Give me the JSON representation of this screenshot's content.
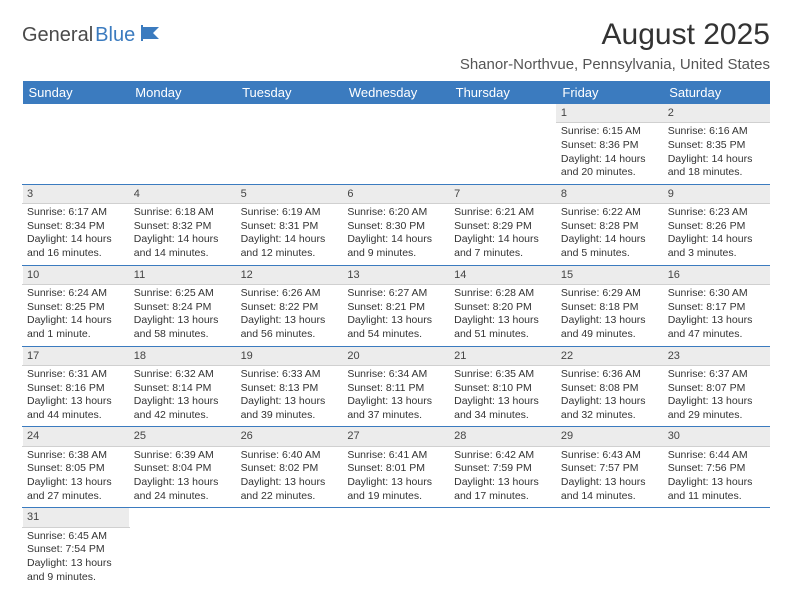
{
  "brand": {
    "part1": "General",
    "part2": "Blue"
  },
  "colors": {
    "header_bg": "#3b7bbf",
    "header_text": "#ffffff",
    "daynum_bg": "#ececec",
    "row_divider": "#3b7bbf",
    "brand_blue": "#3b7bbf",
    "brand_gray": "#4a4a4a"
  },
  "title": "August 2025",
  "location": "Shanor-Northvue, Pennsylvania, United States",
  "weekdays": [
    "Sunday",
    "Monday",
    "Tuesday",
    "Wednesday",
    "Thursday",
    "Friday",
    "Saturday"
  ],
  "weeks": [
    [
      null,
      null,
      null,
      null,
      null,
      {
        "n": "1",
        "sr": "Sunrise: 6:15 AM",
        "ss": "Sunset: 8:36 PM",
        "dl": "Daylight: 14 hours and 20 minutes."
      },
      {
        "n": "2",
        "sr": "Sunrise: 6:16 AM",
        "ss": "Sunset: 8:35 PM",
        "dl": "Daylight: 14 hours and 18 minutes."
      }
    ],
    [
      {
        "n": "3",
        "sr": "Sunrise: 6:17 AM",
        "ss": "Sunset: 8:34 PM",
        "dl": "Daylight: 14 hours and 16 minutes."
      },
      {
        "n": "4",
        "sr": "Sunrise: 6:18 AM",
        "ss": "Sunset: 8:32 PM",
        "dl": "Daylight: 14 hours and 14 minutes."
      },
      {
        "n": "5",
        "sr": "Sunrise: 6:19 AM",
        "ss": "Sunset: 8:31 PM",
        "dl": "Daylight: 14 hours and 12 minutes."
      },
      {
        "n": "6",
        "sr": "Sunrise: 6:20 AM",
        "ss": "Sunset: 8:30 PM",
        "dl": "Daylight: 14 hours and 9 minutes."
      },
      {
        "n": "7",
        "sr": "Sunrise: 6:21 AM",
        "ss": "Sunset: 8:29 PM",
        "dl": "Daylight: 14 hours and 7 minutes."
      },
      {
        "n": "8",
        "sr": "Sunrise: 6:22 AM",
        "ss": "Sunset: 8:28 PM",
        "dl": "Daylight: 14 hours and 5 minutes."
      },
      {
        "n": "9",
        "sr": "Sunrise: 6:23 AM",
        "ss": "Sunset: 8:26 PM",
        "dl": "Daylight: 14 hours and 3 minutes."
      }
    ],
    [
      {
        "n": "10",
        "sr": "Sunrise: 6:24 AM",
        "ss": "Sunset: 8:25 PM",
        "dl": "Daylight: 14 hours and 1 minute."
      },
      {
        "n": "11",
        "sr": "Sunrise: 6:25 AM",
        "ss": "Sunset: 8:24 PM",
        "dl": "Daylight: 13 hours and 58 minutes."
      },
      {
        "n": "12",
        "sr": "Sunrise: 6:26 AM",
        "ss": "Sunset: 8:22 PM",
        "dl": "Daylight: 13 hours and 56 minutes."
      },
      {
        "n": "13",
        "sr": "Sunrise: 6:27 AM",
        "ss": "Sunset: 8:21 PM",
        "dl": "Daylight: 13 hours and 54 minutes."
      },
      {
        "n": "14",
        "sr": "Sunrise: 6:28 AM",
        "ss": "Sunset: 8:20 PM",
        "dl": "Daylight: 13 hours and 51 minutes."
      },
      {
        "n": "15",
        "sr": "Sunrise: 6:29 AM",
        "ss": "Sunset: 8:18 PM",
        "dl": "Daylight: 13 hours and 49 minutes."
      },
      {
        "n": "16",
        "sr": "Sunrise: 6:30 AM",
        "ss": "Sunset: 8:17 PM",
        "dl": "Daylight: 13 hours and 47 minutes."
      }
    ],
    [
      {
        "n": "17",
        "sr": "Sunrise: 6:31 AM",
        "ss": "Sunset: 8:16 PM",
        "dl": "Daylight: 13 hours and 44 minutes."
      },
      {
        "n": "18",
        "sr": "Sunrise: 6:32 AM",
        "ss": "Sunset: 8:14 PM",
        "dl": "Daylight: 13 hours and 42 minutes."
      },
      {
        "n": "19",
        "sr": "Sunrise: 6:33 AM",
        "ss": "Sunset: 8:13 PM",
        "dl": "Daylight: 13 hours and 39 minutes."
      },
      {
        "n": "20",
        "sr": "Sunrise: 6:34 AM",
        "ss": "Sunset: 8:11 PM",
        "dl": "Daylight: 13 hours and 37 minutes."
      },
      {
        "n": "21",
        "sr": "Sunrise: 6:35 AM",
        "ss": "Sunset: 8:10 PM",
        "dl": "Daylight: 13 hours and 34 minutes."
      },
      {
        "n": "22",
        "sr": "Sunrise: 6:36 AM",
        "ss": "Sunset: 8:08 PM",
        "dl": "Daylight: 13 hours and 32 minutes."
      },
      {
        "n": "23",
        "sr": "Sunrise: 6:37 AM",
        "ss": "Sunset: 8:07 PM",
        "dl": "Daylight: 13 hours and 29 minutes."
      }
    ],
    [
      {
        "n": "24",
        "sr": "Sunrise: 6:38 AM",
        "ss": "Sunset: 8:05 PM",
        "dl": "Daylight: 13 hours and 27 minutes."
      },
      {
        "n": "25",
        "sr": "Sunrise: 6:39 AM",
        "ss": "Sunset: 8:04 PM",
        "dl": "Daylight: 13 hours and 24 minutes."
      },
      {
        "n": "26",
        "sr": "Sunrise: 6:40 AM",
        "ss": "Sunset: 8:02 PM",
        "dl": "Daylight: 13 hours and 22 minutes."
      },
      {
        "n": "27",
        "sr": "Sunrise: 6:41 AM",
        "ss": "Sunset: 8:01 PM",
        "dl": "Daylight: 13 hours and 19 minutes."
      },
      {
        "n": "28",
        "sr": "Sunrise: 6:42 AM",
        "ss": "Sunset: 7:59 PM",
        "dl": "Daylight: 13 hours and 17 minutes."
      },
      {
        "n": "29",
        "sr": "Sunrise: 6:43 AM",
        "ss": "Sunset: 7:57 PM",
        "dl": "Daylight: 13 hours and 14 minutes."
      },
      {
        "n": "30",
        "sr": "Sunrise: 6:44 AM",
        "ss": "Sunset: 7:56 PM",
        "dl": "Daylight: 13 hours and 11 minutes."
      }
    ],
    [
      {
        "n": "31",
        "sr": "Sunrise: 6:45 AM",
        "ss": "Sunset: 7:54 PM",
        "dl": "Daylight: 13 hours and 9 minutes."
      },
      null,
      null,
      null,
      null,
      null,
      null
    ]
  ]
}
